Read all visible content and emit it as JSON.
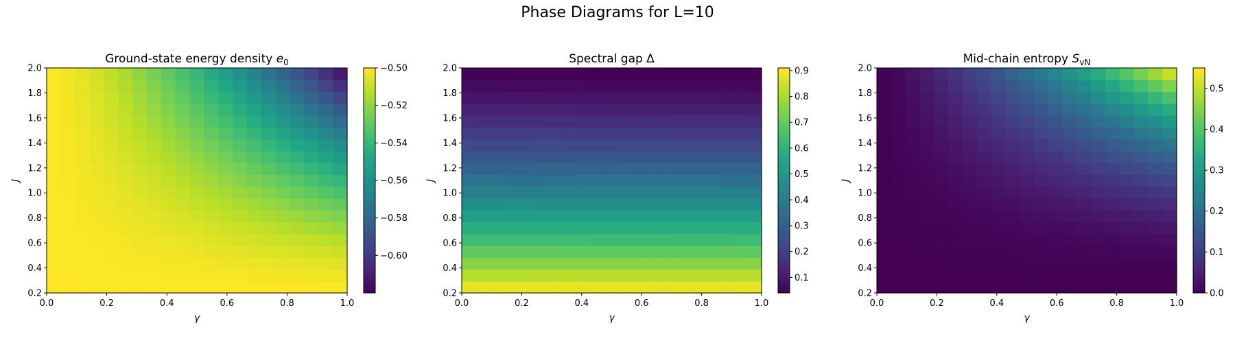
{
  "figure": {
    "suptitle": "Phase Diagrams for L=10"
  },
  "chart_data": [
    {
      "type": "heatmap",
      "title": "Ground-state energy density",
      "title_symbol": "e",
      "title_sub": "0",
      "xlabel": "γ",
      "ylabel": "J",
      "xlim": [
        0.0,
        1.0
      ],
      "ylim": [
        0.2,
        2.0
      ],
      "x_ticks": [
        "0.0",
        "0.2",
        "0.4",
        "0.6",
        "0.8",
        "1.0"
      ],
      "y_ticks": [
        "0.2",
        "0.4",
        "0.6",
        "0.8",
        "1.0",
        "1.2",
        "1.4",
        "1.6",
        "1.8",
        "2.0"
      ],
      "colormap": "viridis",
      "grid": {
        "nx": 21,
        "ny": 19
      },
      "clim": [
        -0.62,
        -0.5
      ],
      "colorbar_ticks": [
        "−0.50",
        "−0.52",
        "−0.54",
        "−0.56",
        "−0.58",
        "−0.60"
      ],
      "model": {
        "kind": "energy",
        "min": -0.62,
        "max": -0.5
      }
    },
    {
      "type": "heatmap",
      "title": "Spectral gap Δ",
      "title_symbol": "",
      "title_sub": "",
      "xlabel": "γ",
      "ylabel": "J",
      "xlim": [
        0.0,
        1.0
      ],
      "ylim": [
        0.2,
        2.0
      ],
      "x_ticks": [
        "0.0",
        "0.2",
        "0.4",
        "0.6",
        "0.8",
        "1.0"
      ],
      "y_ticks": [
        "0.2",
        "0.4",
        "0.6",
        "0.8",
        "1.0",
        "1.2",
        "1.4",
        "1.6",
        "1.8",
        "2.0"
      ],
      "colormap": "viridis",
      "grid": {
        "nx": 21,
        "ny": 19
      },
      "clim": [
        0.04,
        0.91
      ],
      "colorbar_ticks": [
        "0.9",
        "0.8",
        "0.7",
        "0.6",
        "0.5",
        "0.4",
        "0.3",
        "0.2",
        "0.1"
      ],
      "model": {
        "kind": "gap",
        "min": 0.04,
        "max": 0.91
      }
    },
    {
      "type": "heatmap",
      "title": "Mid-chain entropy",
      "title_symbol": "S",
      "title_sub": "vN",
      "xlabel": "γ",
      "ylabel": "J",
      "xlim": [
        0.0,
        1.0
      ],
      "ylim": [
        0.2,
        2.0
      ],
      "x_ticks": [
        "0.0",
        "0.2",
        "0.4",
        "0.6",
        "0.8",
        "1.0"
      ],
      "y_ticks": [
        "0.2",
        "0.4",
        "0.6",
        "0.8",
        "1.0",
        "1.2",
        "1.4",
        "1.6",
        "1.8",
        "2.0"
      ],
      "colormap": "viridis",
      "grid": {
        "nx": 21,
        "ny": 19
      },
      "clim": [
        0.0,
        0.55
      ],
      "colorbar_ticks": [
        "0.5",
        "0.4",
        "0.3",
        "0.2",
        "0.1",
        "0.0"
      ],
      "model": {
        "kind": "entropy",
        "min": 0.0,
        "max": 0.55
      }
    }
  ]
}
